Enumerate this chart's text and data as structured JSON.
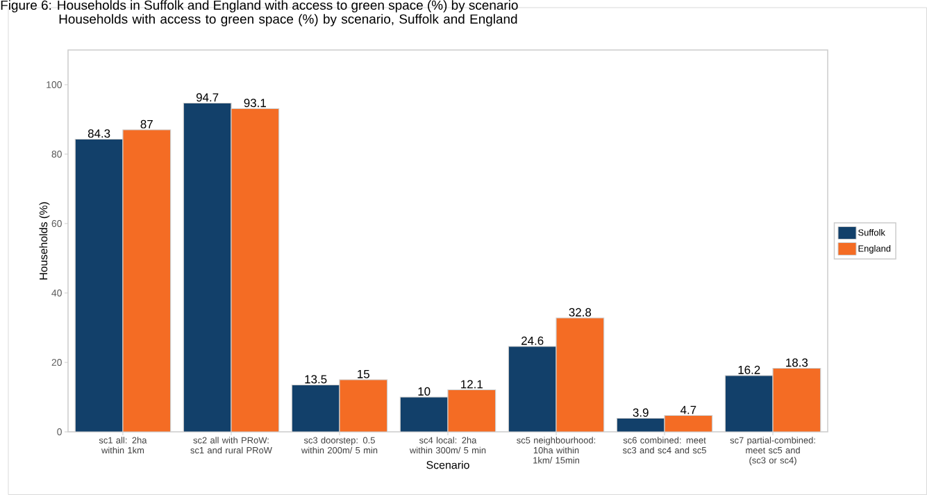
{
  "chart_data": {
    "type": "bar",
    "title": "Households with access to green space (%) by scenario, Suffolk and England",
    "annotations": [
      "Figure 6: Households in Suffolk and England with access to green space (%) by scenario"
    ],
    "xlabel": "Scenario",
    "ylabel": "Households (%)",
    "categories": [
      "sc1 all: 2ha within 1km",
      "sc2 all with PRoW: sc1 and rural PRoW",
      "sc3 doorstep: 0.5 within 200m/ 5 min",
      "sc4 local: 2ha within 300m/ 5 min",
      "sc5 neighbourhood: 10ha within 1km/ 15min",
      "sc6 combined: meet sc3 and sc4 and sc5",
      "sc7 partial-combined: meet sc5 and (sc3 or sc4)"
    ],
    "series": [
      {
        "name": "Suffolk",
        "color": "#12406a",
        "values": [
          84.3,
          94.7,
          13.5,
          10,
          24.6,
          3.9,
          16.2
        ]
      },
      {
        "name": "England",
        "color": "#f46c24",
        "values": [
          87,
          93.1,
          15,
          12.1,
          32.8,
          4.7,
          18.3
        ]
      }
    ],
    "ylim": [
      0,
      110
    ],
    "yticks": [
      0,
      20,
      40,
      60,
      80,
      100
    ],
    "data_labels": true,
    "grid": false,
    "legend": "right"
  }
}
